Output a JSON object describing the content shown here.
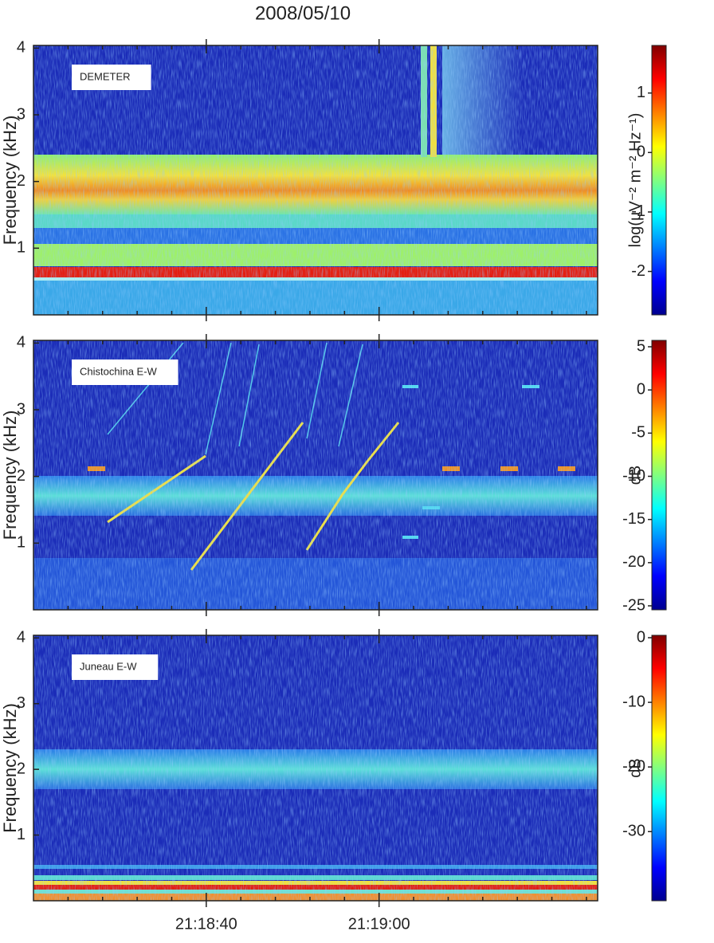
{
  "chart_data": [
    {
      "type": "spectrogram",
      "title": "2008/05/10",
      "label": "DEMETER",
      "ylabel": "Frequency (kHz)",
      "ylim": [
        0,
        4.04
      ],
      "yticks": [
        1,
        2,
        3,
        4
      ],
      "colorbar_label": "log(µV⁻² m⁻² Hz⁻¹)",
      "colormap": "jet",
      "clim": [
        -2.73,
        1.8
      ],
      "cticks": [
        -2,
        -1,
        0,
        1
      ]
    },
    {
      "type": "spectrogram",
      "label": "Chistochina E-W",
      "ylabel": "Frequency (kHz)",
      "ylim": [
        0,
        4.04
      ],
      "yticks": [
        1,
        2,
        3,
        4
      ],
      "colorbar_label": "dB",
      "colormap": "jet",
      "clim": [
        -25.46,
        5.74
      ],
      "cticks": [
        -25,
        -20,
        -15,
        -10,
        -5,
        0,
        5
      ]
    },
    {
      "type": "spectrogram",
      "label": "Juneau E-W",
      "ylabel": "Frequency (kHz)",
      "ylim": [
        0,
        4.04
      ],
      "yticks": [
        1,
        2,
        3,
        4
      ],
      "xlim": [
        76700,
        76765.3
      ],
      "xticks": [
        {
          "value": 76720,
          "label": "21:18:40"
        },
        {
          "value": 76740,
          "label": "21:19:00"
        }
      ],
      "xminorticks": [
        76704,
        76708,
        76712,
        76716,
        76724,
        76728,
        76732,
        76736,
        76744,
        76748,
        76752,
        76756,
        76760,
        76764
      ],
      "colorbar_label": "dB",
      "colormap": "jet",
      "clim": [
        -40.7,
        0.37
      ],
      "cticks": [
        -30,
        -20,
        -10,
        0
      ]
    }
  ]
}
